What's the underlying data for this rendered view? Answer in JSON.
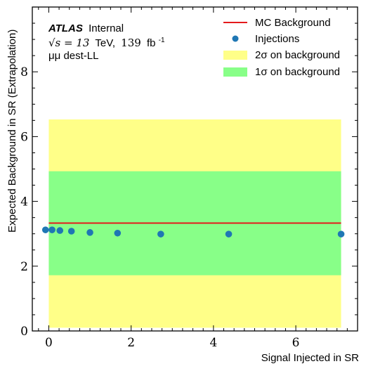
{
  "chart_data": {
    "type": "scatter",
    "xlabel": "Signal Injected in SR",
    "ylabel": "Expected Background in SR (Extrapolation)",
    "xlim": [
      -0.4,
      7.5
    ],
    "ylim": [
      0,
      10
    ],
    "xticks": [
      0,
      2,
      4,
      6
    ],
    "yticks": [
      0,
      2,
      4,
      6,
      8
    ],
    "grid": false,
    "legend_position": "top-right",
    "annotation": {
      "experiment": "ATLAS",
      "status": "Internal",
      "energy_prefix": "√s = 13",
      "energy_unit": "TeV,",
      "lumi_value": "139",
      "lumi_unit": "fb",
      "lumi_exp": "-1",
      "channel": "μμ dest-LL"
    },
    "legend": {
      "mc_background": "MC Background",
      "injections": "Injections",
      "two_sigma": "2σ on background",
      "one_sigma": "1σ on background"
    },
    "colors": {
      "mc_line": "#e41a1c",
      "injections": "#1f77b4",
      "two_sigma": "#ffff88",
      "one_sigma": "#88ff88"
    },
    "mc_background": 3.33,
    "band_x_range": [
      0,
      7.1
    ],
    "one_sigma_band": [
      1.72,
      4.93
    ],
    "two_sigma_band": [
      0.1,
      6.53
    ],
    "injections": {
      "x": [
        -0.08,
        0.08,
        0.27,
        0.55,
        1.0,
        1.67,
        2.72,
        4.37,
        7.1
      ],
      "y": [
        3.12,
        3.12,
        3.1,
        3.08,
        3.04,
        3.02,
        2.99,
        2.99,
        2.99
      ]
    }
  }
}
